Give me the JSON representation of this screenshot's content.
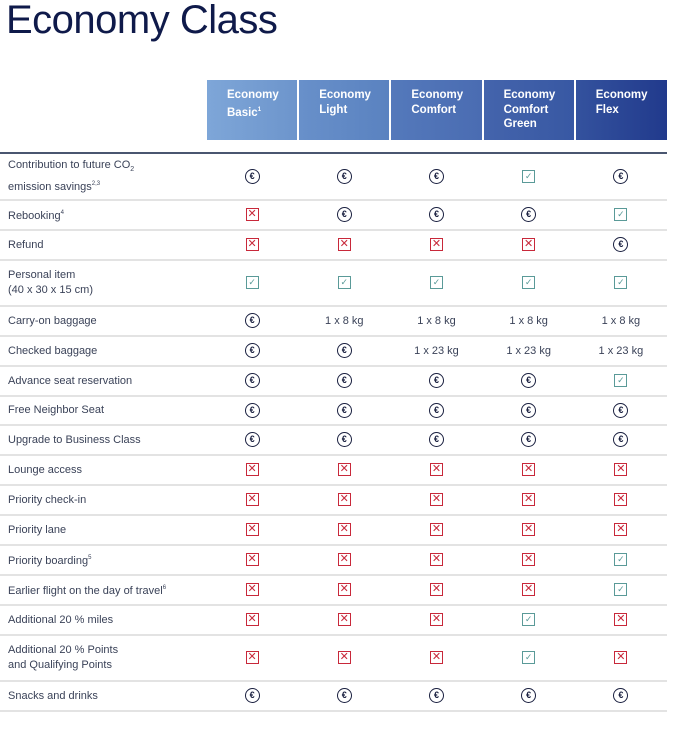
{
  "title": "Economy Class",
  "columns": [
    {
      "line1": "Economy",
      "line2": "Basic",
      "sup": "1",
      "bg": "linear-gradient(90deg,#7ea6d8,#6d95cc)"
    },
    {
      "line1": "Economy",
      "line2": "Light",
      "sup": "",
      "bg": "linear-gradient(90deg,#6890ca,#5a82c0)"
    },
    {
      "line1": "Economy",
      "line2": "Comfort",
      "sup": "",
      "bg": "linear-gradient(90deg,#5479bb,#4a6cb2)"
    },
    {
      "line1": "Economy",
      "line2": "Comfort",
      "line3": "Green",
      "sup": "",
      "bg": "linear-gradient(90deg,#4464ac,#3858a3)"
    },
    {
      "line1": "Economy",
      "line2": "Flex",
      "sup": "",
      "bg": "linear-gradient(90deg,#34529e,#213a8c)"
    }
  ],
  "icons": {
    "e": "euro-icon",
    "x": "cross-icon",
    "c": "check-icon"
  },
  "rows": [
    {
      "label": "Contribution to future CO",
      "sub": "2",
      "label2": "emission savings",
      "sup": "2,3",
      "h": 47,
      "values": [
        "e",
        "e",
        "e",
        "c",
        "e"
      ]
    },
    {
      "label": "Rebooking",
      "sup": "4",
      "h": 30,
      "values": [
        "x",
        "e",
        "e",
        "e",
        "c"
      ]
    },
    {
      "label": "Refund",
      "h": 30,
      "values": [
        "x",
        "x",
        "x",
        "x",
        "e"
      ]
    },
    {
      "label": "Personal item",
      "label2": "(40 x 30 x 15 cm)",
      "h": 46,
      "values": [
        "c",
        "c",
        "c",
        "c",
        "c"
      ]
    },
    {
      "label": "Carry-on baggage",
      "h": 30,
      "values": [
        "e",
        "1 x 8 kg",
        "1 x 8 kg",
        "1 x 8 kg",
        "1 x 8 kg"
      ]
    },
    {
      "label": "Checked baggage",
      "h": 30,
      "values": [
        "e",
        "e",
        "1 x 23 kg",
        "1 x 23 kg",
        "1 x 23 kg"
      ]
    },
    {
      "label": "Advance seat reservation",
      "h": 30,
      "values": [
        "e",
        "e",
        "e",
        "e",
        "c"
      ]
    },
    {
      "label": "Free Neighbor Seat",
      "h": 29,
      "values": [
        "e",
        "e",
        "e",
        "e",
        "e"
      ]
    },
    {
      "label": "Upgrade to Business Class",
      "h": 30,
      "values": [
        "e",
        "e",
        "e",
        "e",
        "e"
      ]
    },
    {
      "label": "Lounge access",
      "h": 30,
      "values": [
        "x",
        "x",
        "x",
        "x",
        "x"
      ]
    },
    {
      "label": "Priority check-in",
      "h": 30,
      "values": [
        "x",
        "x",
        "x",
        "x",
        "x"
      ]
    },
    {
      "label": "Priority lane",
      "h": 30,
      "values": [
        "x",
        "x",
        "x",
        "x",
        "x"
      ]
    },
    {
      "label": "Priority boarding",
      "sup": "5",
      "h": 30,
      "values": [
        "x",
        "x",
        "x",
        "x",
        "c"
      ]
    },
    {
      "label": "Earlier flight on the day of travel",
      "sup": "6",
      "h": 30,
      "values": [
        "x",
        "x",
        "x",
        "x",
        "c"
      ]
    },
    {
      "label": "Additional 20 % miles",
      "h": 30,
      "values": [
        "x",
        "x",
        "x",
        "c",
        "x"
      ]
    },
    {
      "label": "Additional 20 % Points",
      "label2": "and Qualifying Points",
      "h": 46,
      "values": [
        "x",
        "x",
        "x",
        "c",
        "x"
      ]
    },
    {
      "label": "Snacks and drinks",
      "h": 30,
      "values": [
        "e",
        "e",
        "e",
        "e",
        "e"
      ]
    }
  ]
}
